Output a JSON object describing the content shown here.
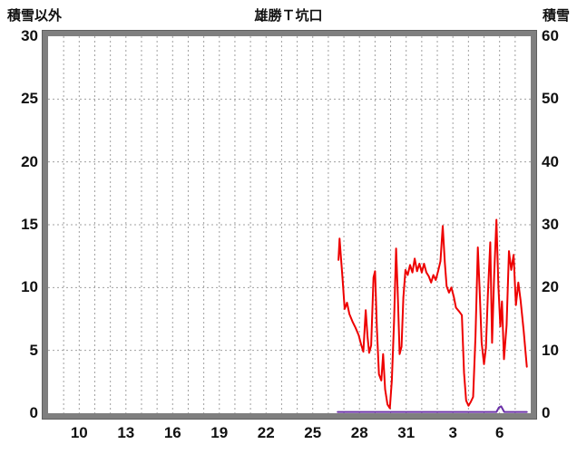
{
  "header": {
    "left_axis_label": "積雪以外",
    "title": "雄勝Ｔ坑口",
    "right_axis_label": "積雪"
  },
  "chart_data": {
    "type": "line",
    "title": "雄勝Ｔ坑口",
    "x_domain": [
      8,
      39
    ],
    "x_gridline_interval_days": 1,
    "x_ticks": [
      {
        "day": 10,
        "label": "10"
      },
      {
        "day": 13,
        "label": "13"
      },
      {
        "day": 16,
        "label": "16"
      },
      {
        "day": 19,
        "label": "19"
      },
      {
        "day": 22,
        "label": "22"
      },
      {
        "day": 25,
        "label": "25"
      },
      {
        "day": 28,
        "label": "28"
      },
      {
        "day": 31,
        "label": "31"
      },
      {
        "day": 34,
        "label": "3"
      },
      {
        "day": 37,
        "label": "6"
      }
    ],
    "left_axis": {
      "label": "積雪以外",
      "min": 0,
      "max": 30,
      "tick_interval": 5,
      "ticks": [
        0,
        5,
        10,
        15,
        20,
        25,
        30
      ]
    },
    "right_axis": {
      "label": "積雪",
      "min": 0,
      "max": 60,
      "tick_interval": 10,
      "ticks": [
        0,
        10,
        20,
        30,
        40,
        50,
        60
      ]
    },
    "grid": {
      "dashed": true,
      "color": "#a0a0a0"
    },
    "series": [
      {
        "id": "non-snow-series",
        "name": "積雪以外",
        "axis": "left",
        "color": "#ee0000",
        "width": 2,
        "points": [
          [
            26.65,
            12.2
          ],
          [
            26.72,
            13.9
          ],
          [
            26.8,
            12.6
          ],
          [
            26.9,
            11.0
          ],
          [
            27.05,
            8.3
          ],
          [
            27.2,
            8.8
          ],
          [
            27.35,
            7.9
          ],
          [
            27.55,
            7.3
          ],
          [
            27.75,
            6.8
          ],
          [
            27.95,
            6.2
          ],
          [
            28.1,
            5.5
          ],
          [
            28.25,
            4.9
          ],
          [
            28.4,
            8.2
          ],
          [
            28.52,
            6.1
          ],
          [
            28.62,
            4.8
          ],
          [
            28.75,
            5.4
          ],
          [
            28.9,
            10.8
          ],
          [
            29.0,
            11.3
          ],
          [
            29.12,
            6.8
          ],
          [
            29.25,
            3.1
          ],
          [
            29.4,
            2.6
          ],
          [
            29.52,
            4.7
          ],
          [
            29.65,
            1.9
          ],
          [
            29.8,
            0.7
          ],
          [
            29.95,
            0.4
          ],
          [
            30.08,
            2.6
          ],
          [
            30.22,
            7.2
          ],
          [
            30.35,
            13.1
          ],
          [
            30.45,
            9.8
          ],
          [
            30.58,
            4.7
          ],
          [
            30.7,
            5.3
          ],
          [
            30.82,
            9.2
          ],
          [
            30.95,
            11.4
          ],
          [
            31.1,
            11.0
          ],
          [
            31.25,
            11.8
          ],
          [
            31.4,
            11.2
          ],
          [
            31.55,
            12.3
          ],
          [
            31.7,
            11.3
          ],
          [
            31.85,
            11.9
          ],
          [
            32.0,
            11.2
          ],
          [
            32.15,
            11.9
          ],
          [
            32.3,
            11.2
          ],
          [
            32.45,
            10.9
          ],
          [
            32.6,
            10.4
          ],
          [
            32.75,
            11.0
          ],
          [
            32.9,
            10.6
          ],
          [
            33.05,
            11.3
          ],
          [
            33.2,
            12.1
          ],
          [
            33.35,
            14.9
          ],
          [
            33.48,
            12.0
          ],
          [
            33.6,
            10.1
          ],
          [
            33.75,
            9.6
          ],
          [
            33.9,
            10.0
          ],
          [
            34.05,
            9.3
          ],
          [
            34.2,
            8.4
          ],
          [
            34.4,
            8.1
          ],
          [
            34.58,
            7.8
          ],
          [
            34.72,
            3.2
          ],
          [
            34.85,
            1.0
          ],
          [
            35.0,
            0.6
          ],
          [
            35.15,
            0.9
          ],
          [
            35.3,
            1.3
          ],
          [
            35.45,
            6.1
          ],
          [
            35.6,
            13.2
          ],
          [
            35.72,
            9.8
          ],
          [
            35.85,
            5.6
          ],
          [
            36.0,
            3.9
          ],
          [
            36.12,
            5.2
          ],
          [
            36.25,
            9.5
          ],
          [
            36.4,
            13.6
          ],
          [
            36.52,
            5.6
          ],
          [
            36.65,
            11.0
          ],
          [
            36.8,
            15.4
          ],
          [
            36.92,
            10.2
          ],
          [
            37.05,
            6.9
          ],
          [
            37.15,
            8.9
          ],
          [
            37.28,
            4.3
          ],
          [
            37.45,
            7.0
          ],
          [
            37.6,
            12.9
          ],
          [
            37.75,
            11.4
          ],
          [
            37.9,
            12.6
          ],
          [
            38.05,
            8.6
          ],
          [
            38.2,
            10.4
          ],
          [
            38.35,
            9.0
          ],
          [
            38.55,
            6.5
          ],
          [
            38.75,
            3.7
          ]
        ]
      },
      {
        "id": "snow-series",
        "name": "積雪",
        "axis": "right",
        "color": "#6a30a8",
        "width": 2,
        "points": [
          [
            26.6,
            0.2
          ],
          [
            36.8,
            0.2
          ],
          [
            36.95,
            0.9
          ],
          [
            37.1,
            1.1
          ],
          [
            37.3,
            0.2
          ],
          [
            38.75,
            0.2
          ]
        ]
      }
    ]
  }
}
